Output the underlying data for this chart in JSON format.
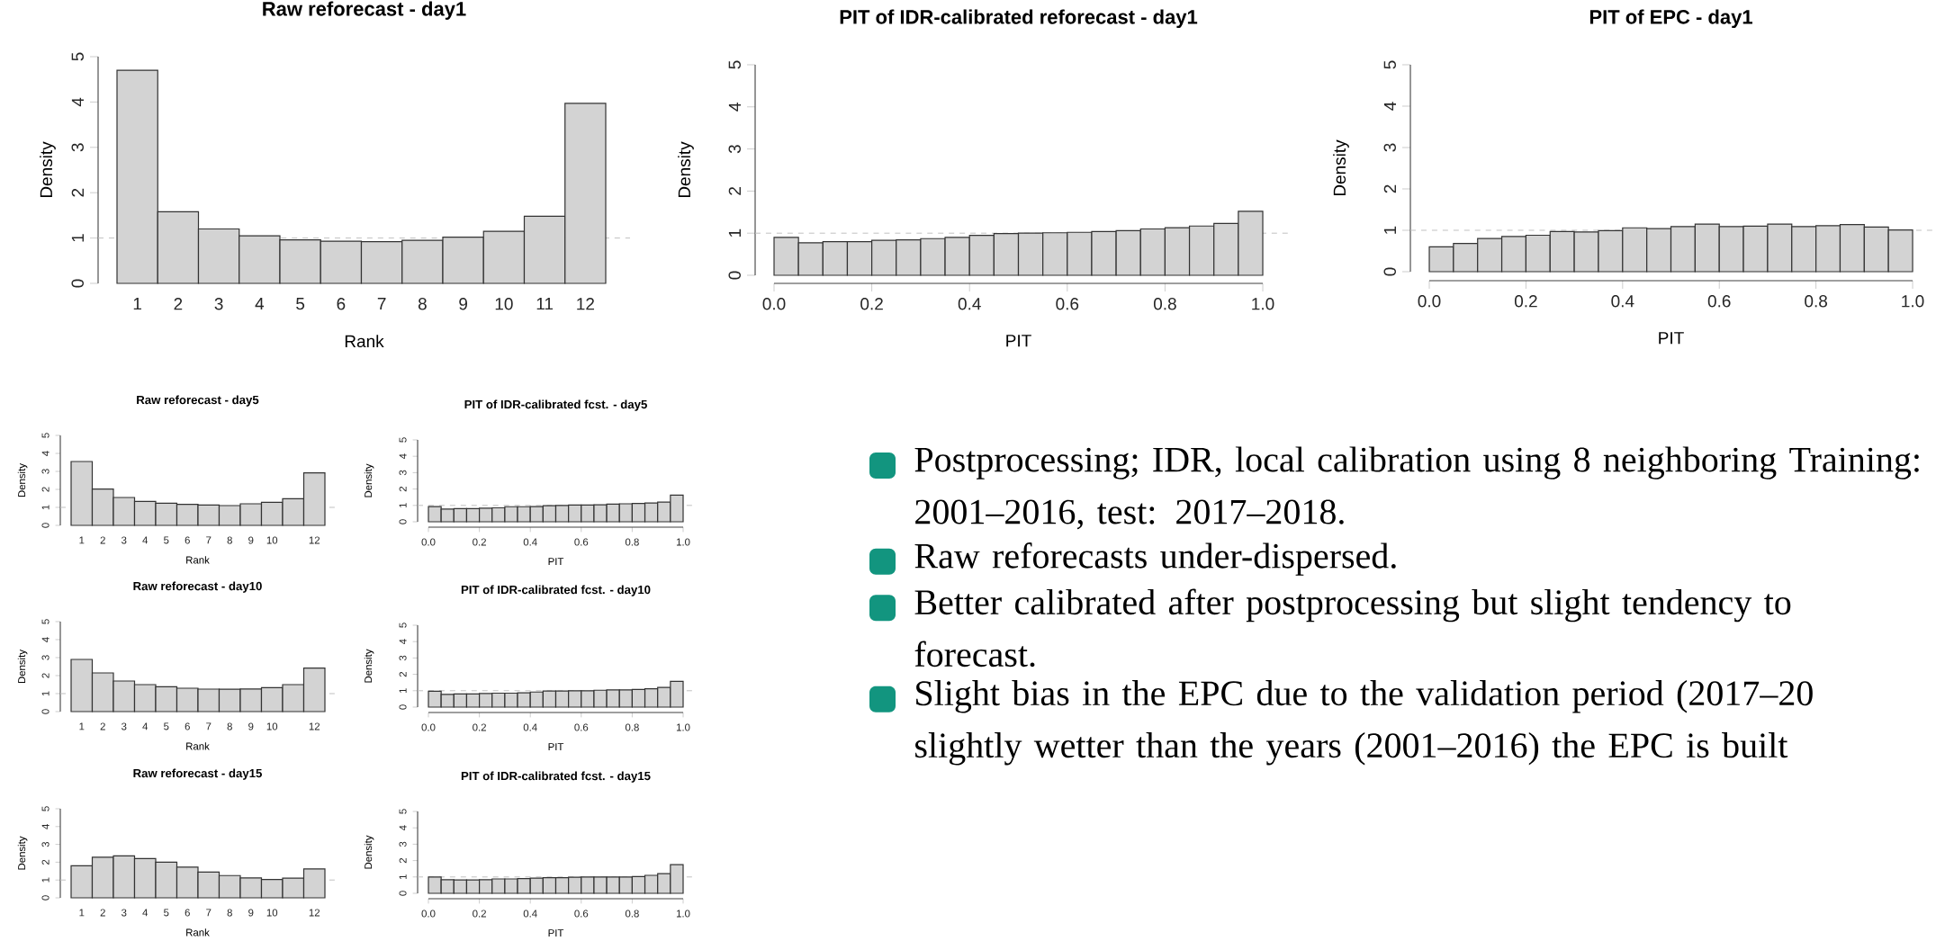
{
  "chart_data": [
    {
      "type": "bar",
      "title": "Raw reforecast - day1",
      "xlabel": "Rank",
      "ylabel": "Density",
      "categories": [
        "1",
        "2",
        "3",
        "4",
        "5",
        "6",
        "7",
        "8",
        "9",
        "10",
        "11",
        "12"
      ],
      "values": [
        4.7,
        1.58,
        1.2,
        1.05,
        0.96,
        0.93,
        0.92,
        0.95,
        1.02,
        1.15,
        1.48,
        3.97
      ],
      "color": "#d3d3d3",
      "ylim": [
        0,
        5
      ],
      "yticks": [
        0,
        1,
        2,
        3,
        4,
        5
      ],
      "ref_lines": [
        {
          "axis": "y",
          "value": 1,
          "color": "#c0c0c0",
          "line_style": "dashed"
        }
      ]
    },
    {
      "type": "histogram",
      "title": "PIT of IDR-calibrated reforecast - day1",
      "xlabel": "PIT",
      "ylabel": "Density",
      "bins": [
        0,
        0.05,
        0.1,
        0.15,
        0.2,
        0.25,
        0.3,
        0.35,
        0.4,
        0.45,
        0.5,
        0.55,
        0.6,
        0.65,
        0.7,
        0.75,
        0.8,
        0.85,
        0.9,
        0.95,
        1.0
      ],
      "values": [
        0.9,
        0.77,
        0.8,
        0.8,
        0.83,
        0.84,
        0.87,
        0.9,
        0.95,
        0.99,
        1.0,
        1.01,
        1.02,
        1.04,
        1.06,
        1.1,
        1.13,
        1.17,
        1.23,
        1.52
      ],
      "color": "#d3d3d3",
      "xlim": [
        0,
        1
      ],
      "xticks": [
        {
          "value": 0,
          "label": "0.0"
        },
        {
          "value": 0.2,
          "label": "0.2"
        },
        {
          "value": 0.4,
          "label": "0.4"
        },
        {
          "value": 0.6,
          "label": "0.6"
        },
        {
          "value": 0.8,
          "label": "0.8"
        },
        {
          "value": 1,
          "label": "1.0"
        }
      ],
      "ylim": [
        0,
        5
      ],
      "yticks": [
        0,
        1,
        2,
        3,
        4,
        5
      ],
      "ref_lines": [
        {
          "axis": "y",
          "value": 1,
          "color": "#c0c0c0",
          "line_style": "dashed"
        }
      ]
    },
    {
      "type": "histogram",
      "title": "PIT of EPC - day1",
      "xlabel": "PIT",
      "ylabel": "Density",
      "bins": [
        0,
        0.05,
        0.1,
        0.15,
        0.2,
        0.25,
        0.3,
        0.35,
        0.4,
        0.45,
        0.5,
        0.55,
        0.6,
        0.65,
        0.7,
        0.75,
        0.8,
        0.85,
        0.9,
        0.95,
        1.0
      ],
      "values": [
        0.6,
        0.68,
        0.8,
        0.85,
        0.88,
        0.97,
        0.96,
        0.99,
        1.06,
        1.04,
        1.09,
        1.15,
        1.09,
        1.1,
        1.15,
        1.09,
        1.11,
        1.14,
        1.08,
        1.01
      ],
      "color": "#d3d3d3",
      "xlim": [
        0,
        1
      ],
      "xticks": [
        {
          "value": 0,
          "label": "0.0"
        },
        {
          "value": 0.2,
          "label": "0.2"
        },
        {
          "value": 0.4,
          "label": "0.4"
        },
        {
          "value": 0.6,
          "label": "0.6"
        },
        {
          "value": 0.8,
          "label": "0.8"
        },
        {
          "value": 1,
          "label": "1.0"
        }
      ],
      "ylim": [
        0,
        5
      ],
      "yticks": [
        0,
        1,
        2,
        3,
        4,
        5
      ],
      "ref_lines": [
        {
          "axis": "y",
          "value": 1,
          "color": "#c0c0c0",
          "line_style": "dashed"
        }
      ]
    },
    {
      "type": "bar",
      "title": "Raw reforecast - day5",
      "xlabel": "Rank",
      "ylabel": "Density",
      "categories": [
        "1",
        "2",
        "3",
        "4",
        "5",
        "6",
        "7",
        "8",
        "9",
        "10",
        null,
        "12"
      ],
      "values": [
        3.55,
        2.02,
        1.55,
        1.33,
        1.23,
        1.17,
        1.13,
        1.1,
        1.2,
        1.28,
        1.48,
        2.92
      ],
      "color": "#d3d3d3",
      "ylim": [
        0,
        5
      ],
      "yticks": [
        0,
        1,
        2,
        3,
        4,
        5
      ],
      "ref_lines": [
        {
          "axis": "y",
          "value": 1,
          "color": "#c0c0c0",
          "line_style": "dashed"
        }
      ]
    },
    {
      "type": "histogram",
      "title": "PIT of IDR-calibrated fcst. - day5",
      "xlabel": "PIT",
      "ylabel": "Density",
      "bins": [
        0,
        0.05,
        0.1,
        0.15,
        0.2,
        0.25,
        0.3,
        0.35,
        0.4,
        0.45,
        0.5,
        0.55,
        0.6,
        0.65,
        0.7,
        0.75,
        0.8,
        0.85,
        0.9,
        0.95,
        1.0
      ],
      "values": [
        0.93,
        0.78,
        0.8,
        0.8,
        0.83,
        0.85,
        0.92,
        0.92,
        0.93,
        0.98,
        1.0,
        1.02,
        1.02,
        1.04,
        1.08,
        1.1,
        1.12,
        1.15,
        1.2,
        1.63
      ],
      "color": "#d3d3d3",
      "xlim": [
        0,
        1
      ],
      "xticks": [
        {
          "value": 0,
          "label": "0.0"
        },
        {
          "value": 0.2,
          "label": "0.2"
        },
        {
          "value": 0.4,
          "label": "0.4"
        },
        {
          "value": 0.6,
          "label": "0.6"
        },
        {
          "value": 0.8,
          "label": "0.8"
        },
        {
          "value": 1,
          "label": "1.0"
        }
      ],
      "ylim": [
        0,
        5
      ],
      "yticks": [
        0,
        1,
        2,
        3,
        4,
        5
      ],
      "ref_lines": [
        {
          "axis": "y",
          "value": 1,
          "color": "#c0c0c0",
          "line_style": "dashed"
        }
      ]
    },
    {
      "type": "bar",
      "title": "Raw reforecast - day10",
      "xlabel": "Rank",
      "ylabel": "Density",
      "categories": [
        "1",
        "2",
        "3",
        "4",
        "5",
        "6",
        "7",
        "8",
        "9",
        "10",
        null,
        "12"
      ],
      "values": [
        2.9,
        2.15,
        1.7,
        1.5,
        1.38,
        1.3,
        1.25,
        1.24,
        1.26,
        1.33,
        1.5,
        2.42
      ],
      "color": "#d3d3d3",
      "ylim": [
        0,
        5
      ],
      "yticks": [
        0,
        1,
        2,
        3,
        4,
        5
      ],
      "ref_lines": [
        {
          "axis": "y",
          "value": 1,
          "color": "#c0c0c0",
          "line_style": "dashed"
        }
      ]
    },
    {
      "type": "histogram",
      "title": "PIT of IDR-calibrated fcst. - day10",
      "xlabel": "PIT",
      "ylabel": "Density",
      "bins": [
        0,
        0.05,
        0.1,
        0.15,
        0.2,
        0.25,
        0.3,
        0.35,
        0.4,
        0.45,
        0.5,
        0.55,
        0.6,
        0.65,
        0.7,
        0.75,
        0.8,
        0.85,
        0.9,
        0.95,
        1.0
      ],
      "values": [
        0.97,
        0.78,
        0.8,
        0.8,
        0.83,
        0.85,
        0.85,
        0.87,
        0.92,
        0.98,
        0.98,
        1.0,
        1.0,
        1.03,
        1.05,
        1.05,
        1.08,
        1.12,
        1.2,
        1.57
      ],
      "color": "#d3d3d3",
      "xlim": [
        0,
        1
      ],
      "xticks": [
        {
          "value": 0,
          "label": "0.0"
        },
        {
          "value": 0.2,
          "label": "0.2"
        },
        {
          "value": 0.4,
          "label": "0.4"
        },
        {
          "value": 0.6,
          "label": "0.6"
        },
        {
          "value": 0.8,
          "label": "0.8"
        },
        {
          "value": 1,
          "label": "1.0"
        }
      ],
      "ylim": [
        0,
        5
      ],
      "yticks": [
        0,
        1,
        2,
        3,
        4,
        5
      ],
      "ref_lines": [
        {
          "axis": "y",
          "value": 1,
          "color": "#c0c0c0",
          "line_style": "dashed"
        }
      ]
    },
    {
      "type": "bar",
      "title": "Raw reforecast - day15",
      "xlabel": "Rank",
      "ylabel": "Density",
      "categories": [
        "1",
        "2",
        "3",
        "4",
        "5",
        "6",
        "7",
        "8",
        "9",
        "10",
        null,
        "12"
      ],
      "values": [
        1.8,
        2.28,
        2.35,
        2.2,
        2.0,
        1.72,
        1.45,
        1.25,
        1.12,
        1.03,
        1.1,
        1.62
      ],
      "color": "#d3d3d3",
      "ylim": [
        0,
        5
      ],
      "yticks": [
        0,
        1,
        2,
        3,
        4,
        5
      ],
      "ref_lines": [
        {
          "axis": "y",
          "value": 1,
          "color": "#c0c0c0",
          "line_style": "dashed"
        }
      ]
    },
    {
      "type": "histogram",
      "title": "PIT of IDR-calibrated fcst. - day15",
      "xlabel": "PIT",
      "ylabel": "Density",
      "bins": [
        0,
        0.05,
        0.1,
        0.15,
        0.2,
        0.25,
        0.3,
        0.35,
        0.4,
        0.45,
        0.5,
        0.55,
        0.6,
        0.65,
        0.7,
        0.75,
        0.8,
        0.85,
        0.9,
        0.95,
        1.0
      ],
      "values": [
        1.0,
        0.83,
        0.82,
        0.82,
        0.83,
        0.88,
        0.88,
        0.9,
        0.93,
        0.95,
        0.95,
        0.98,
        1.0,
        1.0,
        1.0,
        1.0,
        1.02,
        1.1,
        1.2,
        1.75
      ],
      "color": "#d3d3d3",
      "xlim": [
        0,
        1
      ],
      "xticks": [
        {
          "value": 0,
          "label": "0.0"
        },
        {
          "value": 0.2,
          "label": "0.2"
        },
        {
          "value": 0.4,
          "label": "0.4"
        },
        {
          "value": 0.6,
          "label": "0.6"
        },
        {
          "value": 0.8,
          "label": "0.8"
        },
        {
          "value": 1,
          "label": "1.0"
        }
      ],
      "ylim": [
        0,
        5
      ],
      "yticks": [
        0,
        1,
        2,
        3,
        4,
        5
      ],
      "ref_lines": [
        {
          "axis": "y",
          "value": 1,
          "color": "#c0c0c0",
          "line_style": "dashed"
        }
      ]
    },
    {
      "type": "other",
      "color": "#12957f",
      "annotations": [
        "Postprocessing; IDR, local calibration using 8 neighboring Training: 2001–2016, test: 2017–2018.",
        "Raw reforecasts under-dispersed.",
        "Better calibrated after postprocessing but slight tendency to forecast.",
        "Slight bias in the EPC due to the validation period (2017–20 slightly wetter than the years (2001–2016) the EPC is built"
      ]
    }
  ]
}
